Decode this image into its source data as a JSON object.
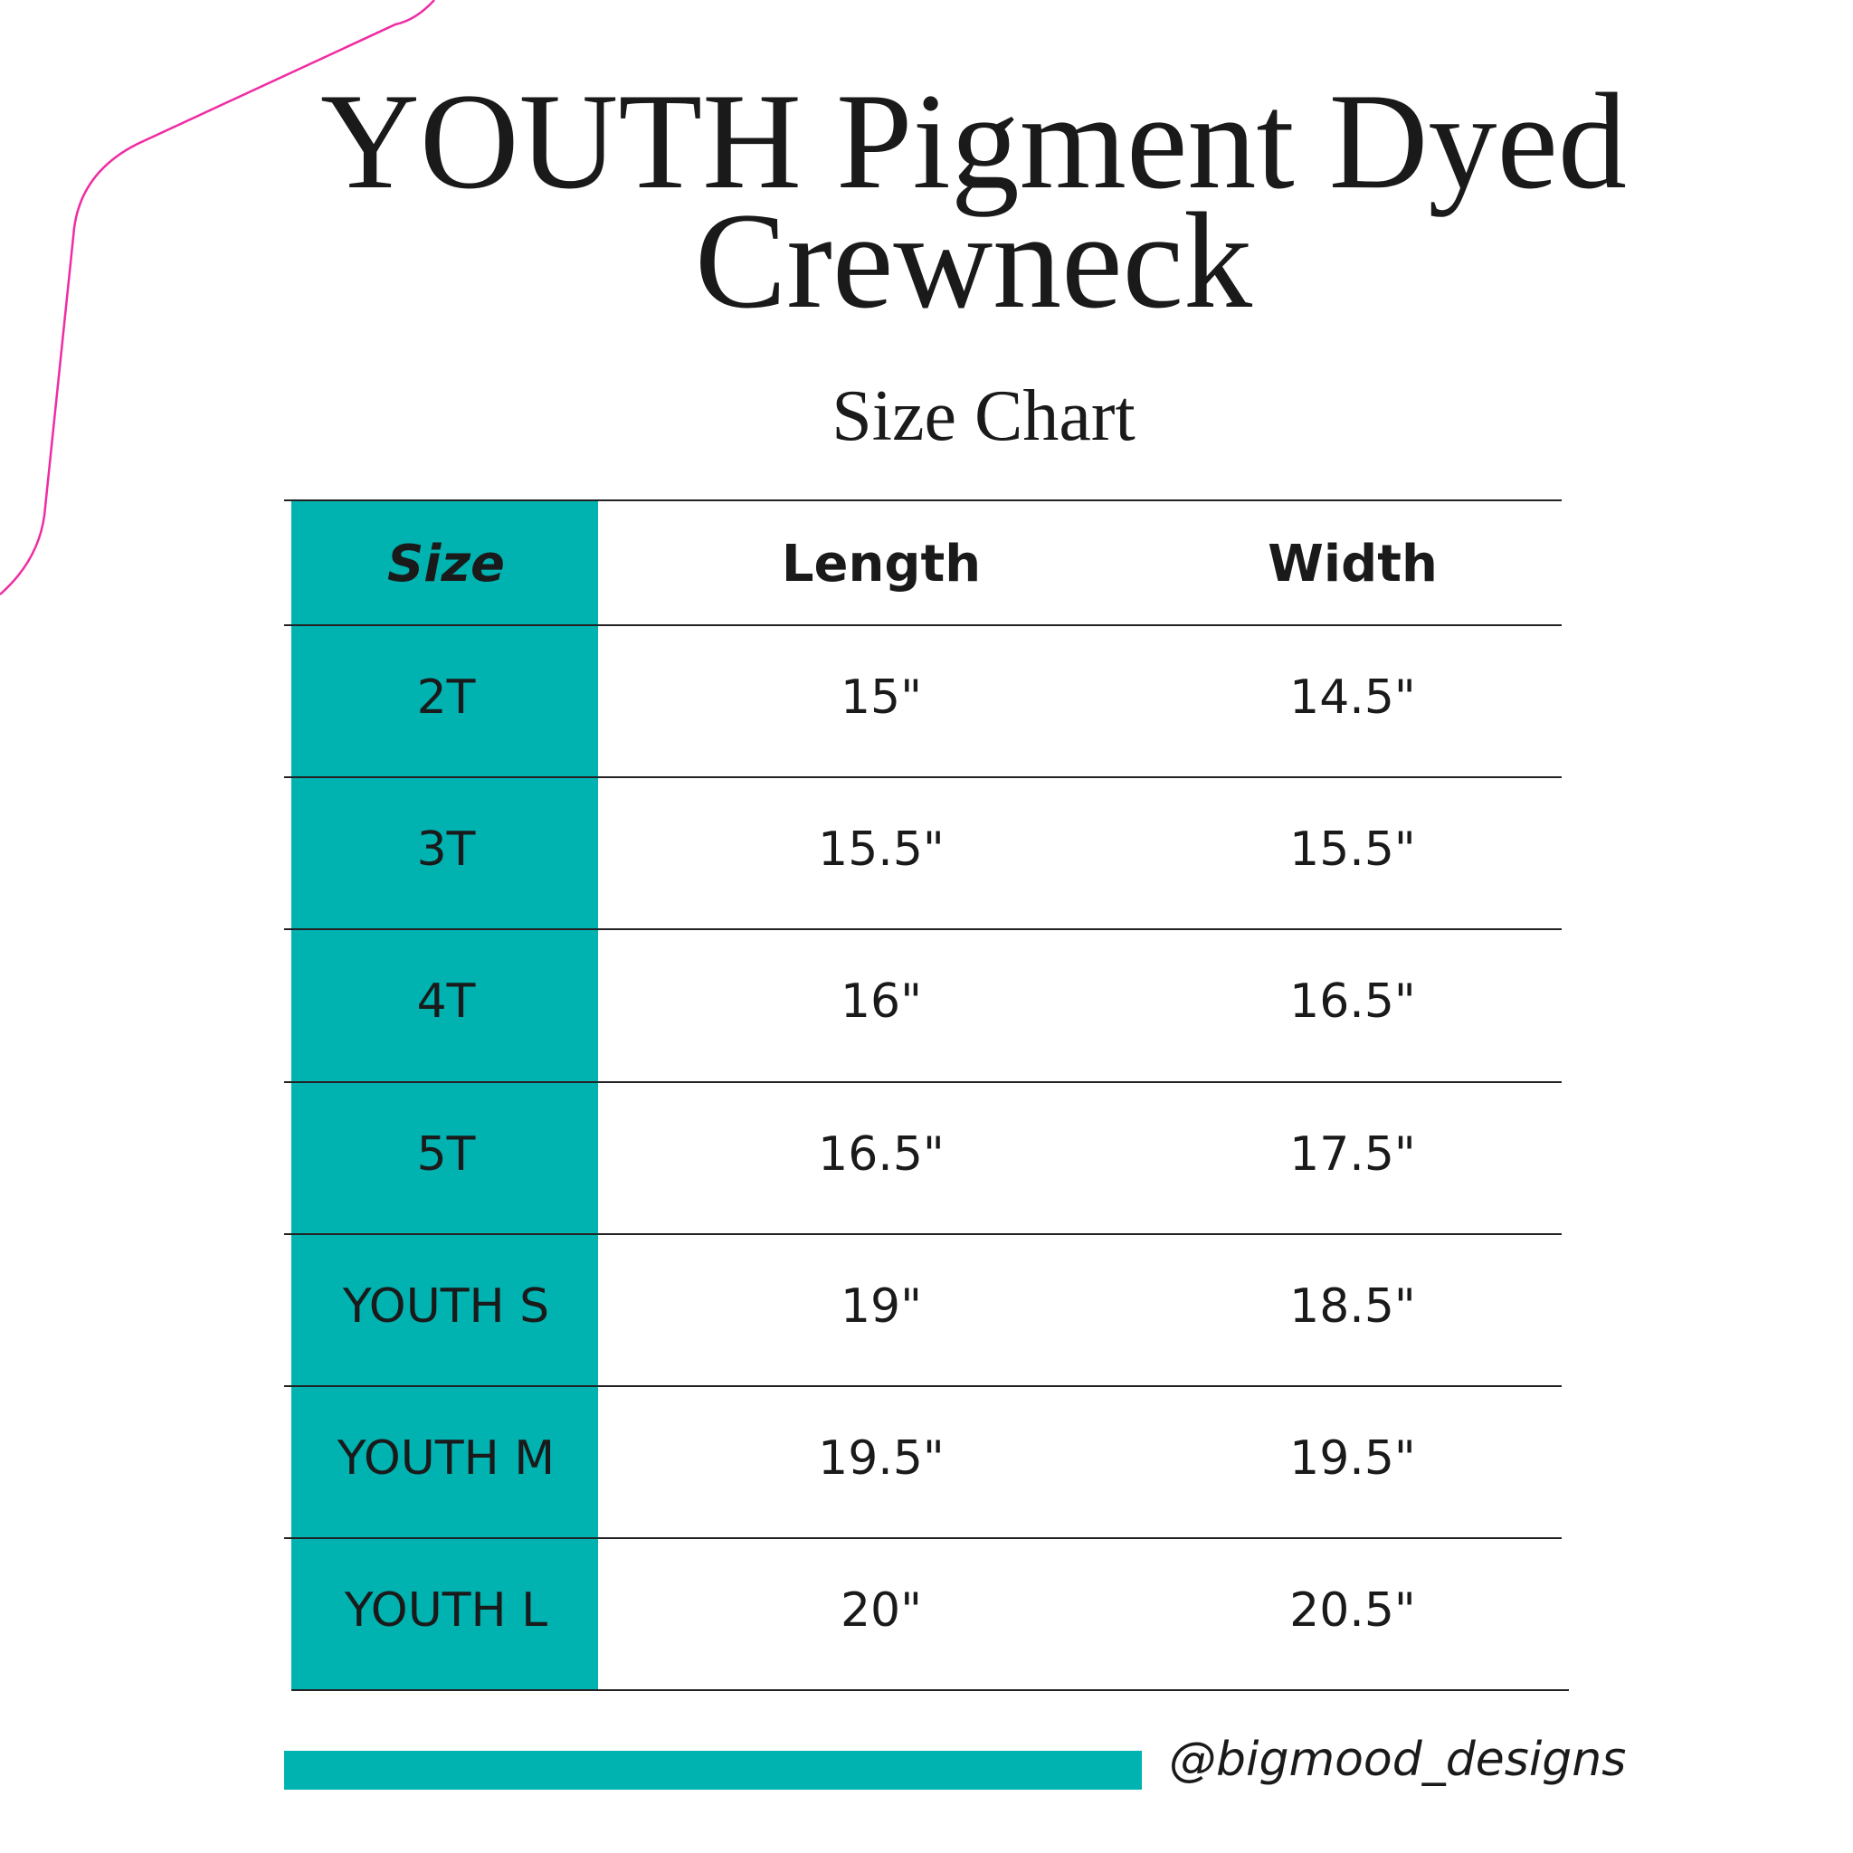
{
  "header": {
    "title": "YOUTH Pigment Dyed Crewneck",
    "subtitle": "Size Chart"
  },
  "table": {
    "columns": [
      "Size",
      "Length",
      "Width"
    ],
    "rows": [
      [
        "2T",
        "15\"",
        "14.5\""
      ],
      [
        "3T",
        "15.5\"",
        "15.5\""
      ],
      [
        "4T",
        "16\"",
        "16.5\""
      ],
      [
        "5T",
        "16.5\"",
        "17.5\""
      ],
      [
        "YOUTH S",
        "19\"",
        "18.5\""
      ],
      [
        "YOUTH M",
        "19.5\"",
        "19.5\""
      ],
      [
        "YOUTH L",
        "20\"",
        "20.5\""
      ]
    ]
  },
  "footer": {
    "handle": "@bigmood_designs"
  }
}
